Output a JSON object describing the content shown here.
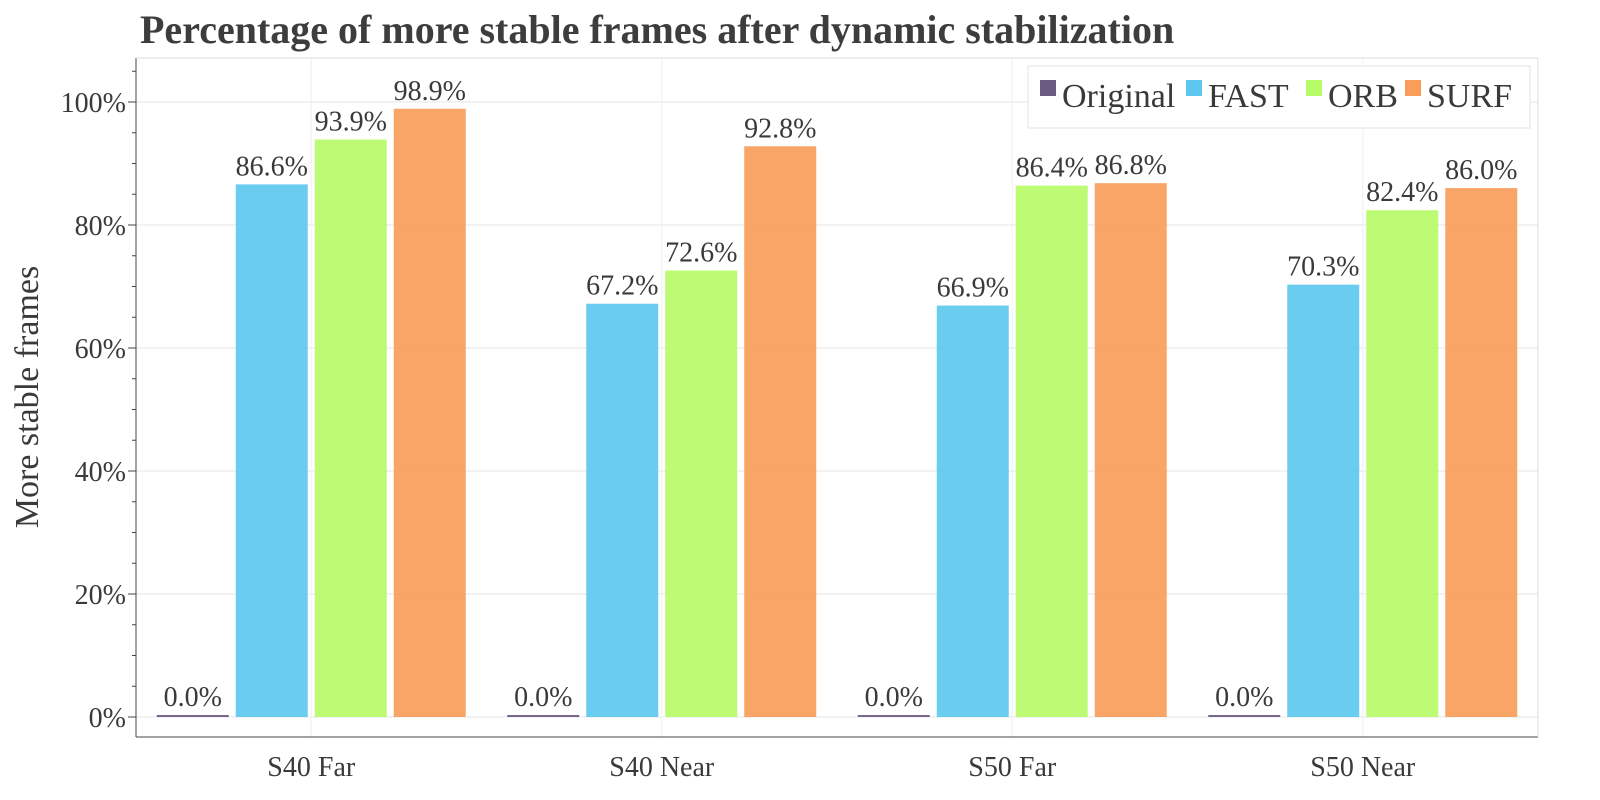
{
  "chart_data": {
    "type": "bar",
    "title": "Percentage of more stable frames after dynamic stabilization",
    "xlabel": "",
    "ylabel": "More stable frames",
    "categories": [
      "S40 Far",
      "S40 Near",
      "S50 Far",
      "S50 Near"
    ],
    "series": [
      {
        "name": "Original",
        "color": "#6b5a80",
        "values": [
          0.0,
          0.0,
          0.0,
          0.0
        ],
        "labels": [
          "0.0%",
          "0.0%",
          "0.0%",
          "0.0%"
        ]
      },
      {
        "name": "FAST",
        "color": "#5dc8ee",
        "values": [
          86.6,
          67.2,
          66.9,
          70.3
        ],
        "labels": [
          "86.6%",
          "67.2%",
          "66.9%",
          "70.3%"
        ]
      },
      {
        "name": "ORB",
        "color": "#b8fb68",
        "values": [
          93.9,
          72.6,
          86.4,
          82.4
        ],
        "labels": [
          "93.9%",
          "72.6%",
          "86.4%",
          "82.4%"
        ]
      },
      {
        "name": "SURF",
        "color": "#f99d5a",
        "values": [
          98.9,
          92.8,
          86.8,
          86.0
        ],
        "labels": [
          "98.9%",
          "92.8%",
          "86.8%",
          "86.0%"
        ]
      }
    ],
    "ylim": [
      0,
      106
    ],
    "yticks": [
      0,
      20,
      40,
      60,
      80,
      100
    ],
    "ytick_labels": [
      "0%",
      "20%",
      "40%",
      "60%",
      "80%",
      "100%"
    ],
    "grid": true,
    "legend_position": "top-right"
  }
}
